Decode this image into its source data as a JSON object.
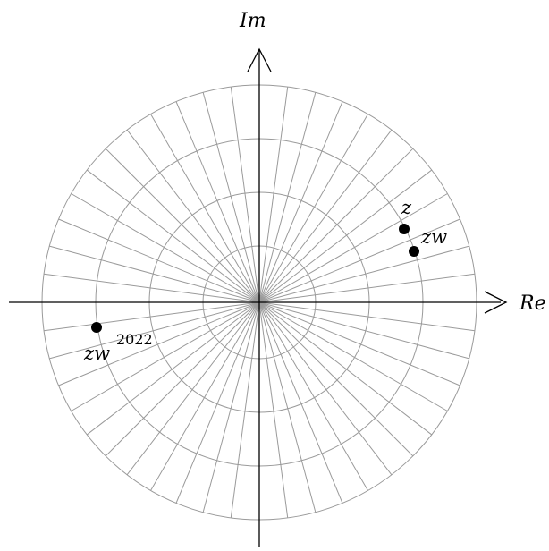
{
  "axes": {
    "real_label": "Re",
    "imag_label": "Im"
  },
  "grid": {
    "circles": 4,
    "rays": 48,
    "color": "#9a9a9a"
  },
  "points": [
    {
      "id": "z",
      "label": "z",
      "exponent": "",
      "angle_deg": 15,
      "radius": 3.5
    },
    {
      "id": "zw",
      "label": "zw",
      "exponent": "",
      "angle_deg": 11.25,
      "radius": 3.6
    },
    {
      "id": "zw2022",
      "label": "zw",
      "exponent": "2022",
      "angle_deg": 190,
      "radius": 3.7
    }
  ]
}
